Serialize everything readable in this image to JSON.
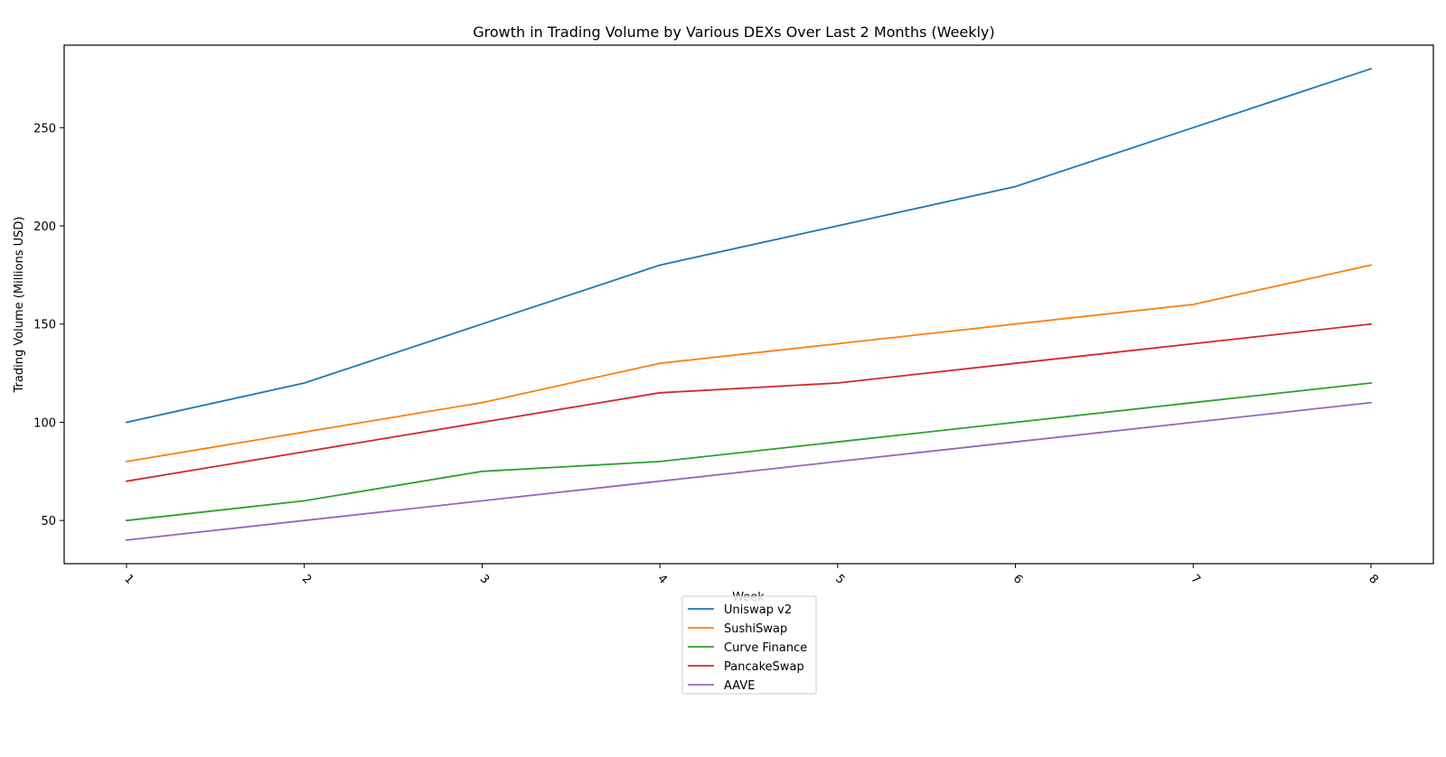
{
  "chart_data": {
    "type": "line",
    "title": "Growth in Trading Volume by Various DEXs Over Last 2 Months (Weekly)",
    "xlabel": "Week",
    "ylabel": "Trading Volume (Millions USD)",
    "categories": [
      "1",
      "2",
      "3",
      "4",
      "5",
      "6",
      "7",
      "8"
    ],
    "yticks": [
      "50",
      "100",
      "150",
      "200",
      "250"
    ],
    "ylim": [
      28,
      292
    ],
    "grid": false,
    "legend_position": "bottom-center",
    "series": [
      {
        "name": "Uniswap v2",
        "color": "#1f77b4",
        "values": [
          100,
          120,
          150,
          180,
          200,
          220,
          250,
          280
        ]
      },
      {
        "name": "SushiSwap",
        "color": "#ff7f0e",
        "values": [
          80,
          95,
          110,
          130,
          140,
          150,
          160,
          180
        ]
      },
      {
        "name": "Curve Finance",
        "color": "#2ca02c",
        "values": [
          50,
          60,
          75,
          80,
          90,
          100,
          110,
          120
        ]
      },
      {
        "name": "PancakeSwap",
        "color": "#d62728",
        "values": [
          70,
          85,
          100,
          115,
          120,
          130,
          140,
          150
        ]
      },
      {
        "name": "AAVE",
        "color": "#9467bd",
        "values": [
          40,
          50,
          60,
          70,
          80,
          90,
          100,
          110
        ]
      }
    ]
  }
}
